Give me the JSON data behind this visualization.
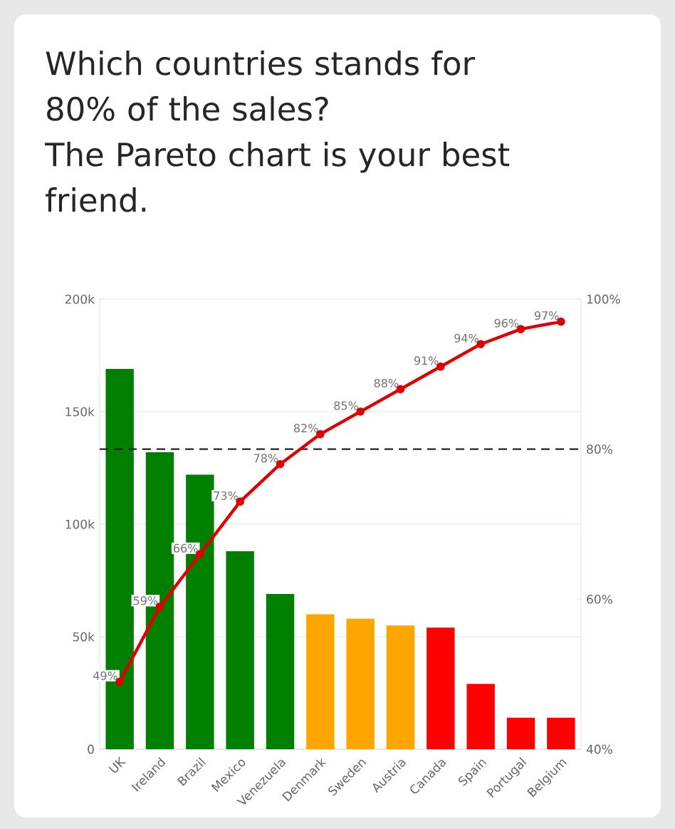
{
  "chart_data": {
    "type": "bar",
    "title": "Which countries stands for 80% of the sales?\nThe Pareto chart is your best friend.",
    "categories": [
      "UK",
      "Ireland",
      "Brazil",
      "Mexico",
      "Venezuela",
      "Denmark",
      "Sweden",
      "Austria",
      "Canada",
      "Spain",
      "Portugal",
      "Belgium"
    ],
    "series": [
      {
        "colors": [
          "#007f00",
          "#007f00",
          "#007f00",
          "#007f00",
          "#007f00",
          "#ffa500",
          "#ffa500",
          "#ffa500",
          "#ff0000",
          "#ff0000",
          "#ff0000",
          "#ff0000"
        ],
        "values": [
          169000,
          132000,
          122000,
          88000,
          69000,
          60000,
          58000,
          55000,
          54000,
          29000,
          14000,
          14000
        ]
      },
      {
        "type": "line",
        "axis": "y2",
        "color": "#e00000",
        "marker": "circle",
        "values": [
          49,
          59,
          66,
          73,
          78,
          82,
          85,
          88,
          91,
          94,
          96,
          97
        ],
        "value_labels": [
          "49%",
          "59%",
          "66%",
          "73%",
          "78%",
          "82%",
          "85%",
          "88%",
          "91%",
          "94%",
          "96%",
          "97%"
        ]
      }
    ],
    "ylim": [
      0,
      200000
    ],
    "yticks": [
      {
        "value": 0,
        "label": "0"
      },
      {
        "value": 50000,
        "label": "50k"
      },
      {
        "value": 100000,
        "label": "100k"
      },
      {
        "value": 150000,
        "label": "150k"
      },
      {
        "value": 200000,
        "label": "200k"
      }
    ],
    "y2lim": [
      40,
      100
    ],
    "y2ticks": [
      {
        "value": 40,
        "label": "40%"
      },
      {
        "value": 60,
        "label": "60%"
      },
      {
        "value": 80,
        "label": "80%"
      },
      {
        "value": 100,
        "label": "100%"
      }
    ],
    "ref_lines": [
      {
        "axis": "y2",
        "value": 80,
        "color": "#222222",
        "line_style": "dashed"
      }
    ],
    "grid": "y"
  }
}
